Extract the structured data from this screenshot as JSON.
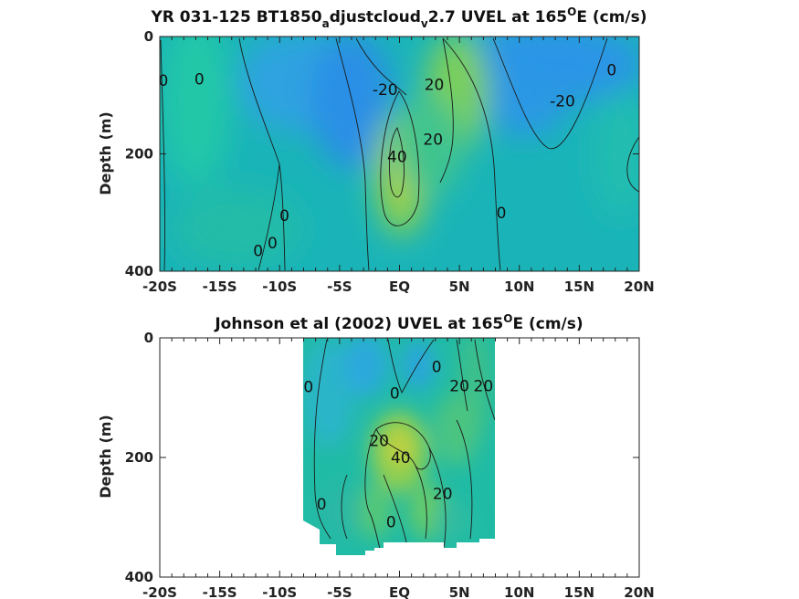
{
  "chart_data": [
    {
      "type": "heatmap",
      "title_parts": [
        "YR 031-125 BT1850",
        "a",
        "djustcloud",
        "v",
        "2.7 UVEL at 165",
        "O",
        "E (cm/s)"
      ],
      "xlabel": "",
      "ylabel": "Depth (m)",
      "xlim": [
        -20,
        20
      ],
      "ylim": [
        0,
        400
      ],
      "y_reversed": true,
      "x_ticks": [
        -20,
        -15,
        -10,
        -5,
        0,
        5,
        10,
        15,
        20
      ],
      "x_tick_labels": [
        "-20S",
        "-15S",
        "-10S",
        "-5S",
        "EQ",
        "5N",
        "10N",
        "15N",
        "20N"
      ],
      "y_ticks": [
        0,
        200,
        400
      ],
      "y_tick_labels": [
        "0",
        "200",
        "400"
      ],
      "contour_levels": [
        -20,
        0,
        20,
        40
      ],
      "contour_labels": [
        {
          "text": "0",
          "x": -19.7,
          "y": 75
        },
        {
          "text": "0",
          "x": -16.7,
          "y": 72
        },
        {
          "text": "-20",
          "x": -1.2,
          "y": 90
        },
        {
          "text": "20",
          "x": 2.9,
          "y": 82
        },
        {
          "text": "40",
          "x": -0.2,
          "y": 205
        },
        {
          "text": "20",
          "x": 2.8,
          "y": 175
        },
        {
          "text": "0",
          "x": 8.5,
          "y": 300
        },
        {
          "text": "0",
          "x": -9.6,
          "y": 305
        },
        {
          "text": "0",
          "x": -10.6,
          "y": 352
        },
        {
          "text": "0",
          "x": -11.8,
          "y": 365
        },
        {
          "text": "-20",
          "x": 13.6,
          "y": 110
        },
        {
          "text": "0",
          "x": 17.7,
          "y": 57
        }
      ]
    },
    {
      "type": "heatmap",
      "title_parts": [
        "Johnson et al (2002) UVEL at 165",
        "O",
        "E (cm/s)"
      ],
      "xlabel": "",
      "ylabel": "Depth (m)",
      "xlim": [
        -20,
        20
      ],
      "ylim": [
        0,
        400
      ],
      "y_reversed": true,
      "data_extent_x": [
        -8,
        8
      ],
      "x_ticks": [
        -20,
        -15,
        -10,
        -5,
        0,
        5,
        10,
        15,
        20
      ],
      "x_tick_labels": [
        "-20S",
        "-15S",
        "-10S",
        "-5S",
        "EQ",
        "5N",
        "10N",
        "15N",
        "20N"
      ],
      "y_ticks": [
        0,
        200,
        400
      ],
      "y_tick_labels": [
        "0",
        "200",
        "400"
      ],
      "contour_levels": [
        0,
        20,
        40
      ],
      "contour_labels": [
        {
          "text": "0",
          "x": -7.6,
          "y": 82
        },
        {
          "text": "0",
          "x": -0.4,
          "y": 92
        },
        {
          "text": "0",
          "x": 3.1,
          "y": 48
        },
        {
          "text": "20",
          "x": 5.0,
          "y": 80
        },
        {
          "text": "20",
          "x": 7.0,
          "y": 80
        },
        {
          "text": "20",
          "x": -1.7,
          "y": 172
        },
        {
          "text": "40",
          "x": 0.1,
          "y": 200
        },
        {
          "text": "20",
          "x": 3.6,
          "y": 260
        },
        {
          "text": "0",
          "x": -6.5,
          "y": 278
        },
        {
          "text": "0",
          "x": -0.7,
          "y": 308
        }
      ]
    }
  ]
}
